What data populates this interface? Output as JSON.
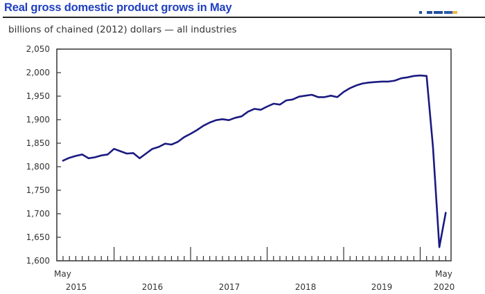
{
  "header": {
    "title": "Real gross domestic product grows in May"
  },
  "colors": {
    "title": "#1f3fbf",
    "line": "#1a1a80",
    "axis": "#333333"
  },
  "chart_data": {
    "type": "line",
    "title": "Real gross domestic product grows in May",
    "subtitle": "billions of chained (2012) dollars — all industries",
    "xlabel": "",
    "ylabel": "",
    "ylim": [
      1600,
      2050
    ],
    "yticks": [
      1600,
      1650,
      1700,
      1750,
      1800,
      1850,
      1900,
      1950,
      2000,
      2050
    ],
    "ytick_labels": [
      "1,600",
      "1,650",
      "1,700",
      "1,750",
      "1,800",
      "1,850",
      "1,900",
      "1,950",
      "2,000",
      "2,050"
    ],
    "x_start_label": {
      "month": "May",
      "year": "2015"
    },
    "x_end_label": {
      "month": "May",
      "year": "2020"
    },
    "year_labels": [
      "2015",
      "2016",
      "2017",
      "2018",
      "2019",
      "2020"
    ],
    "grid": false,
    "series": [
      {
        "name": "all industries",
        "x": [
          "2015-05",
          "2015-06",
          "2015-07",
          "2015-08",
          "2015-09",
          "2015-10",
          "2015-11",
          "2015-12",
          "2016-01",
          "2016-02",
          "2016-03",
          "2016-04",
          "2016-05",
          "2016-06",
          "2016-07",
          "2016-08",
          "2016-09",
          "2016-10",
          "2016-11",
          "2016-12",
          "2017-01",
          "2017-02",
          "2017-03",
          "2017-04",
          "2017-05",
          "2017-06",
          "2017-07",
          "2017-08",
          "2017-09",
          "2017-10",
          "2017-11",
          "2017-12",
          "2018-01",
          "2018-02",
          "2018-03",
          "2018-04",
          "2018-05",
          "2018-06",
          "2018-07",
          "2018-08",
          "2018-09",
          "2018-10",
          "2018-11",
          "2018-12",
          "2019-01",
          "2019-02",
          "2019-03",
          "2019-04",
          "2019-05",
          "2019-06",
          "2019-07",
          "2019-08",
          "2019-09",
          "2019-10",
          "2019-11",
          "2019-12",
          "2020-01",
          "2020-02",
          "2020-03",
          "2020-04",
          "2020-05"
        ],
        "values": [
          1813,
          1819,
          1823,
          1826,
          1818,
          1820,
          1824,
          1826,
          1838,
          1833,
          1828,
          1829,
          1818,
          1828,
          1838,
          1842,
          1849,
          1847,
          1853,
          1863,
          1870,
          1878,
          1887,
          1894,
          1899,
          1901,
          1899,
          1904,
          1907,
          1917,
          1923,
          1921,
          1928,
          1934,
          1932,
          1941,
          1943,
          1949,
          1951,
          1953,
          1948,
          1948,
          1951,
          1948,
          1959,
          1967,
          1973,
          1977,
          1979,
          1980,
          1981,
          1981,
          1983,
          1988,
          1990,
          1993,
          1994,
          1993,
          1842,
          1629,
          1702
        ]
      }
    ]
  }
}
